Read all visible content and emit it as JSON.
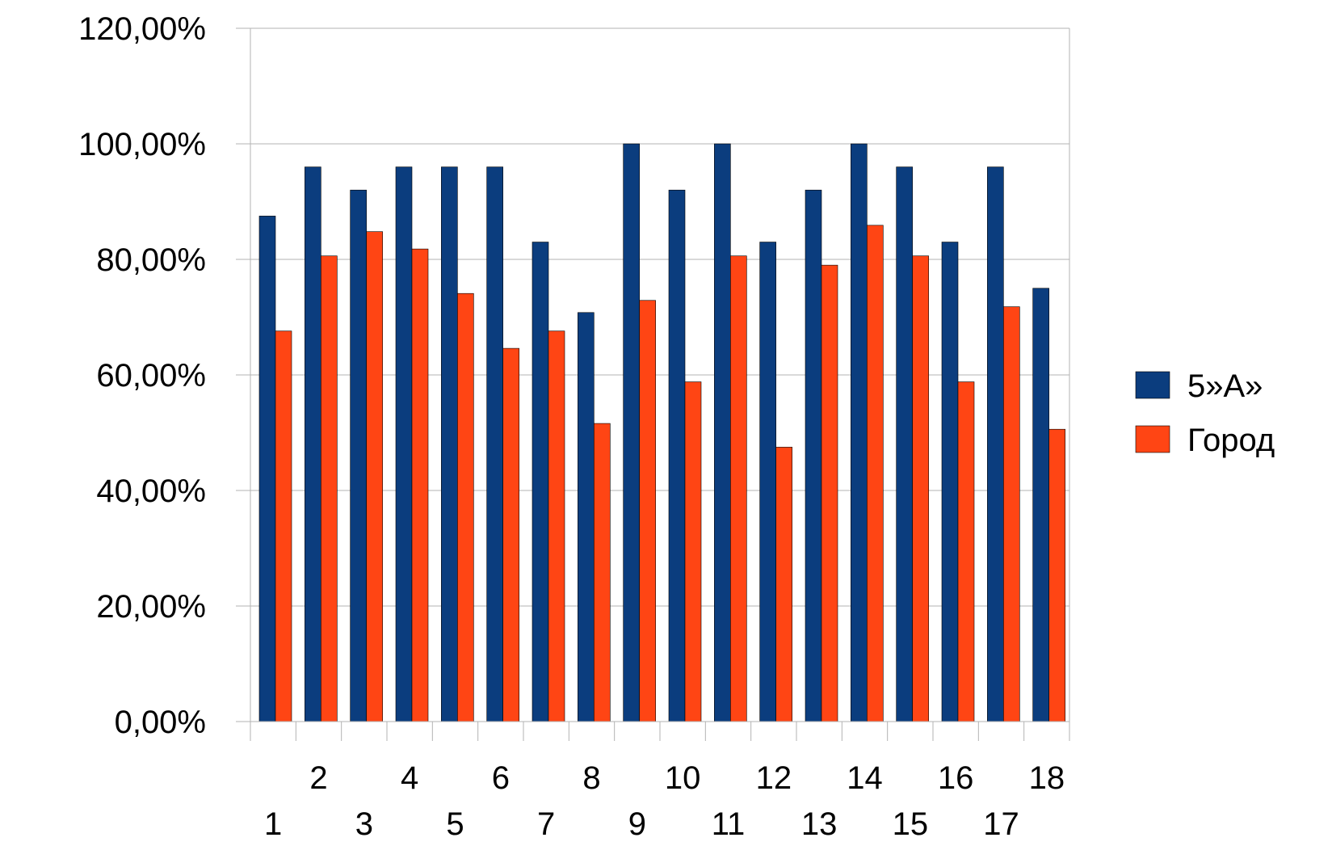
{
  "chart_data": {
    "type": "bar",
    "title": "",
    "xlabel": "",
    "ylabel": "",
    "categories": [
      "1",
      "2",
      "3",
      "4",
      "5",
      "6",
      "7",
      "8",
      "9",
      "10",
      "11",
      "12",
      "13",
      "14",
      "15",
      "16",
      "17",
      "18"
    ],
    "series": [
      {
        "name": "5»А»",
        "color": "#0b3d7e",
        "values": [
          87.5,
          96,
          92,
          96,
          96,
          96,
          83,
          70.8,
          100,
          92,
          100,
          83,
          92,
          100,
          96,
          83,
          96,
          75
        ]
      },
      {
        "name": "Город",
        "color": "#ff4514",
        "values": [
          67.6,
          80.6,
          84.8,
          81.8,
          74.1,
          64.6,
          67.6,
          51.6,
          72.9,
          58.8,
          80.6,
          47.5,
          79.0,
          85.9,
          80.6,
          58.8,
          71.8,
          50.6
        ]
      }
    ],
    "ylim": [
      0,
      120
    ],
    "y_ticks": [
      "0,00%",
      "20,00%",
      "40,00%",
      "60,00%",
      "80,00%",
      "100,00%",
      "120,00%"
    ],
    "grid": true,
    "legend_position": "right"
  }
}
